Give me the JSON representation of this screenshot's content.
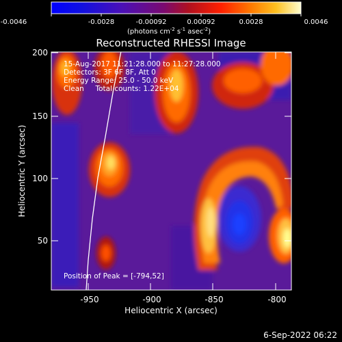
{
  "colorbar": {
    "ticks": [
      "-0.0046",
      "-0.0028",
      "-0.00092",
      "0.00092",
      "0.0028",
      "0.0046"
    ],
    "units_prefix": "(photons cm",
    "units_exp1": "-2",
    "units_mid": " s",
    "units_exp2": "-1",
    "units_mid2": " asec",
    "units_exp3": "-2",
    "units_suffix": ")"
  },
  "plot": {
    "title": "Reconstructed RHESSI Image",
    "xlabel": "Heliocentric X (arcsec)",
    "ylabel": "Heliocentric Y (arcsec)",
    "xticks": [
      "-950",
      "-900",
      "-850",
      "-800"
    ],
    "yticks": [
      "200",
      "150",
      "100",
      "50"
    ],
    "info": [
      "15-Aug-2017 11:21:28.000 to 11:27:28.000",
      "Detectors: 3F 6F 8F, Att 0",
      "Energy Range: 25.0 - 50.0 keV",
      "Clean     Total counts: 1.22E+04"
    ],
    "peak": "Position of Peak = [-794,52]"
  },
  "footer": {
    "timestamp": "6-Sep-2022 06:22"
  },
  "colors": {
    "background": "#000000",
    "low": "#1a1ad6",
    "mid": "#5a1a9a",
    "high": "#ff5a00",
    "peak": "#ffee80"
  }
}
